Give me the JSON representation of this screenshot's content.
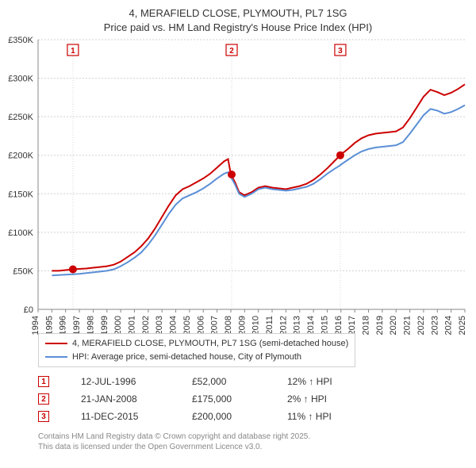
{
  "title": {
    "line1": "4, MERAFIELD CLOSE, PLYMOUTH, PL7 1SG",
    "line2": "Price paid vs. HM Land Registry's House Price Index (HPI)"
  },
  "chart": {
    "type": "line",
    "background_color": "#ffffff",
    "grid_color": "#d0d0d0",
    "axis_color": "#888888",
    "y": {
      "min": 0,
      "max": 350000,
      "step": 50000,
      "tick_labels": [
        "£0",
        "£50K",
        "£100K",
        "£150K",
        "£200K",
        "£250K",
        "£300K",
        "£350K"
      ],
      "label_fontsize": 11,
      "label_color": "#333333"
    },
    "x": {
      "min": 1994,
      "max": 2025,
      "step": 1,
      "tick_labels": [
        "1994",
        "1995",
        "1996",
        "1997",
        "1998",
        "1999",
        "2000",
        "2001",
        "2002",
        "2003",
        "2004",
        "2005",
        "2006",
        "2007",
        "2008",
        "2009",
        "2010",
        "2011",
        "2012",
        "2013",
        "2014",
        "2015",
        "2016",
        "2017",
        "2018",
        "2019",
        "2020",
        "2021",
        "2022",
        "2023",
        "2024",
        "2025"
      ],
      "label_fontsize": 11,
      "label_color": "#333333",
      "rotation": -90
    },
    "series": [
      {
        "name": "4, MERAFIELD CLOSE, PLYMOUTH, PL7 1SG (semi-detached house)",
        "color": "#cc0000",
        "line_width": 2,
        "points": [
          [
            1995.0,
            50000
          ],
          [
            1995.5,
            50000
          ],
          [
            1996.0,
            51000
          ],
          [
            1996.5,
            52000
          ],
          [
            1997.0,
            52500
          ],
          [
            1997.5,
            53000
          ],
          [
            1998.0,
            54000
          ],
          [
            1998.5,
            55000
          ],
          [
            1999.0,
            56000
          ],
          [
            1999.5,
            58000
          ],
          [
            2000.0,
            62000
          ],
          [
            2000.5,
            68000
          ],
          [
            2001.0,
            74000
          ],
          [
            2001.5,
            82000
          ],
          [
            2002.0,
            92000
          ],
          [
            2002.5,
            105000
          ],
          [
            2003.0,
            120000
          ],
          [
            2003.5,
            135000
          ],
          [
            2004.0,
            148000
          ],
          [
            2004.5,
            156000
          ],
          [
            2005.0,
            160000
          ],
          [
            2005.5,
            165000
          ],
          [
            2006.0,
            170000
          ],
          [
            2006.5,
            176000
          ],
          [
            2007.0,
            184000
          ],
          [
            2007.5,
            192000
          ],
          [
            2007.8,
            195000
          ],
          [
            2008.0,
            175000
          ],
          [
            2008.3,
            165000
          ],
          [
            2008.6,
            152000
          ],
          [
            2009.0,
            148000
          ],
          [
            2009.5,
            152000
          ],
          [
            2010.0,
            158000
          ],
          [
            2010.5,
            160000
          ],
          [
            2011.0,
            158000
          ],
          [
            2011.5,
            157000
          ],
          [
            2012.0,
            156000
          ],
          [
            2012.5,
            158000
          ],
          [
            2013.0,
            160000
          ],
          [
            2013.5,
            163000
          ],
          [
            2014.0,
            168000
          ],
          [
            2014.5,
            175000
          ],
          [
            2015.0,
            183000
          ],
          [
            2015.5,
            192000
          ],
          [
            2015.95,
            200000
          ],
          [
            2016.0,
            201000
          ],
          [
            2016.5,
            208000
          ],
          [
            2017.0,
            216000
          ],
          [
            2017.5,
            222000
          ],
          [
            2018.0,
            226000
          ],
          [
            2018.5,
            228000
          ],
          [
            2019.0,
            229000
          ],
          [
            2019.5,
            230000
          ],
          [
            2020.0,
            231000
          ],
          [
            2020.5,
            236000
          ],
          [
            2021.0,
            248000
          ],
          [
            2021.5,
            262000
          ],
          [
            2022.0,
            276000
          ],
          [
            2022.5,
            285000
          ],
          [
            2023.0,
            282000
          ],
          [
            2023.5,
            278000
          ],
          [
            2024.0,
            281000
          ],
          [
            2024.5,
            286000
          ],
          [
            2025.0,
            292000
          ]
        ]
      },
      {
        "name": "HPI: Average price, semi-detached house, City of Plymouth",
        "color": "#5b8fd6",
        "line_width": 2,
        "points": [
          [
            1995.0,
            44000
          ],
          [
            1995.5,
            44500
          ],
          [
            1996.0,
            45000
          ],
          [
            1996.5,
            45500
          ],
          [
            1997.0,
            46000
          ],
          [
            1997.5,
            47000
          ],
          [
            1998.0,
            48000
          ],
          [
            1998.5,
            49000
          ],
          [
            1999.0,
            50000
          ],
          [
            1999.5,
            52000
          ],
          [
            2000.0,
            56000
          ],
          [
            2000.5,
            61000
          ],
          [
            2001.0,
            67000
          ],
          [
            2001.5,
            74000
          ],
          [
            2002.0,
            84000
          ],
          [
            2002.5,
            96000
          ],
          [
            2003.0,
            110000
          ],
          [
            2003.5,
            124000
          ],
          [
            2004.0,
            136000
          ],
          [
            2004.5,
            144000
          ],
          [
            2005.0,
            148000
          ],
          [
            2005.5,
            152000
          ],
          [
            2006.0,
            157000
          ],
          [
            2006.5,
            163000
          ],
          [
            2007.0,
            170000
          ],
          [
            2007.5,
            176000
          ],
          [
            2007.8,
            178000
          ],
          [
            2008.0,
            172000
          ],
          [
            2008.3,
            162000
          ],
          [
            2008.6,
            150000
          ],
          [
            2009.0,
            146000
          ],
          [
            2009.5,
            150000
          ],
          [
            2010.0,
            156000
          ],
          [
            2010.5,
            158000
          ],
          [
            2011.0,
            156000
          ],
          [
            2011.5,
            155000
          ],
          [
            2012.0,
            154000
          ],
          [
            2012.5,
            155000
          ],
          [
            2013.0,
            157000
          ],
          [
            2013.5,
            159000
          ],
          [
            2014.0,
            163000
          ],
          [
            2014.5,
            169000
          ],
          [
            2015.0,
            176000
          ],
          [
            2015.5,
            182000
          ],
          [
            2015.95,
            187000
          ],
          [
            2016.0,
            188000
          ],
          [
            2016.5,
            194000
          ],
          [
            2017.0,
            200000
          ],
          [
            2017.5,
            205000
          ],
          [
            2018.0,
            208000
          ],
          [
            2018.5,
            210000
          ],
          [
            2019.0,
            211000
          ],
          [
            2019.5,
            212000
          ],
          [
            2020.0,
            213000
          ],
          [
            2020.5,
            217000
          ],
          [
            2021.0,
            228000
          ],
          [
            2021.5,
            240000
          ],
          [
            2022.0,
            252000
          ],
          [
            2022.5,
            260000
          ],
          [
            2023.0,
            258000
          ],
          [
            2023.5,
            254000
          ],
          [
            2024.0,
            256000
          ],
          [
            2024.5,
            260000
          ],
          [
            2025.0,
            265000
          ]
        ]
      }
    ],
    "sale_markers": [
      {
        "idx": "1",
        "year": 1996.53,
        "price": 52000
      },
      {
        "idx": "2",
        "year": 2008.06,
        "price": 175000
      },
      {
        "idx": "3",
        "year": 2015.95,
        "price": 200000
      }
    ],
    "marker_color": "#cc0000",
    "marker_size": 5
  },
  "legend": {
    "items": [
      {
        "label": "4, MERAFIELD CLOSE, PLYMOUTH, PL7 1SG (semi-detached house)",
        "color": "#cc0000"
      },
      {
        "label": "HPI: Average price, semi-detached house, City of Plymouth",
        "color": "#5b8fd6"
      }
    ],
    "border_color": "#d0d0d0",
    "fontsize": 11
  },
  "sales": [
    {
      "idx": "1",
      "date": "12-JUL-1996",
      "price": "£52,000",
      "diff": "12% ↑ HPI"
    },
    {
      "idx": "2",
      "date": "21-JAN-2008",
      "price": "£175,000",
      "diff": "2% ↑ HPI"
    },
    {
      "idx": "3",
      "date": "11-DEC-2015",
      "price": "£200,000",
      "diff": "11% ↑ HPI"
    }
  ],
  "attribution": {
    "line1": "Contains HM Land Registry data © Crown copyright and database right 2025.",
    "line2": "This data is licensed under the Open Government Licence v3.0."
  }
}
